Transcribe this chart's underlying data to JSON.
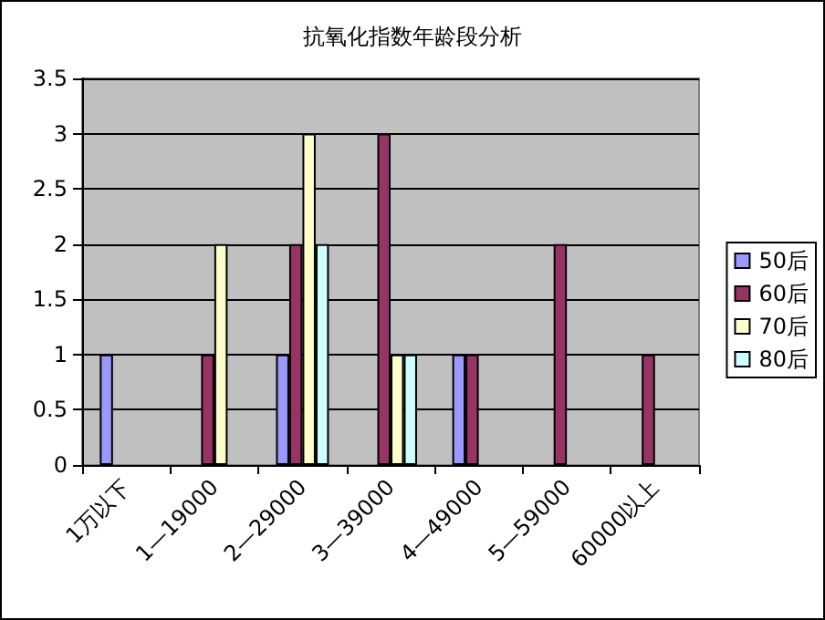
{
  "chart_data": {
    "type": "bar",
    "title": "抗氧化指数年龄段分析",
    "categories": [
      "1万以下",
      "1—19000",
      "2—29000",
      "3—39000",
      "4—49000",
      "5—59000",
      "60000以上"
    ],
    "series": [
      {
        "name": "50后",
        "color": "#9999ff",
        "values": [
          1,
          null,
          1,
          null,
          1,
          null,
          null
        ]
      },
      {
        "name": "60后",
        "color": "#993366",
        "values": [
          null,
          1,
          2,
          3,
          1,
          2,
          1
        ]
      },
      {
        "name": "70后",
        "color": "#ffffcc",
        "values": [
          null,
          2,
          3,
          1,
          null,
          null,
          null
        ]
      },
      {
        "name": "80后",
        "color": "#ccffff",
        "values": [
          null,
          null,
          2,
          1,
          null,
          null,
          null
        ]
      }
    ],
    "ylim": [
      0,
      3.5
    ],
    "yticks": [
      0,
      0.5,
      1,
      1.5,
      2,
      2.5,
      3,
      3.5
    ],
    "grid": "y",
    "legend": "right"
  }
}
